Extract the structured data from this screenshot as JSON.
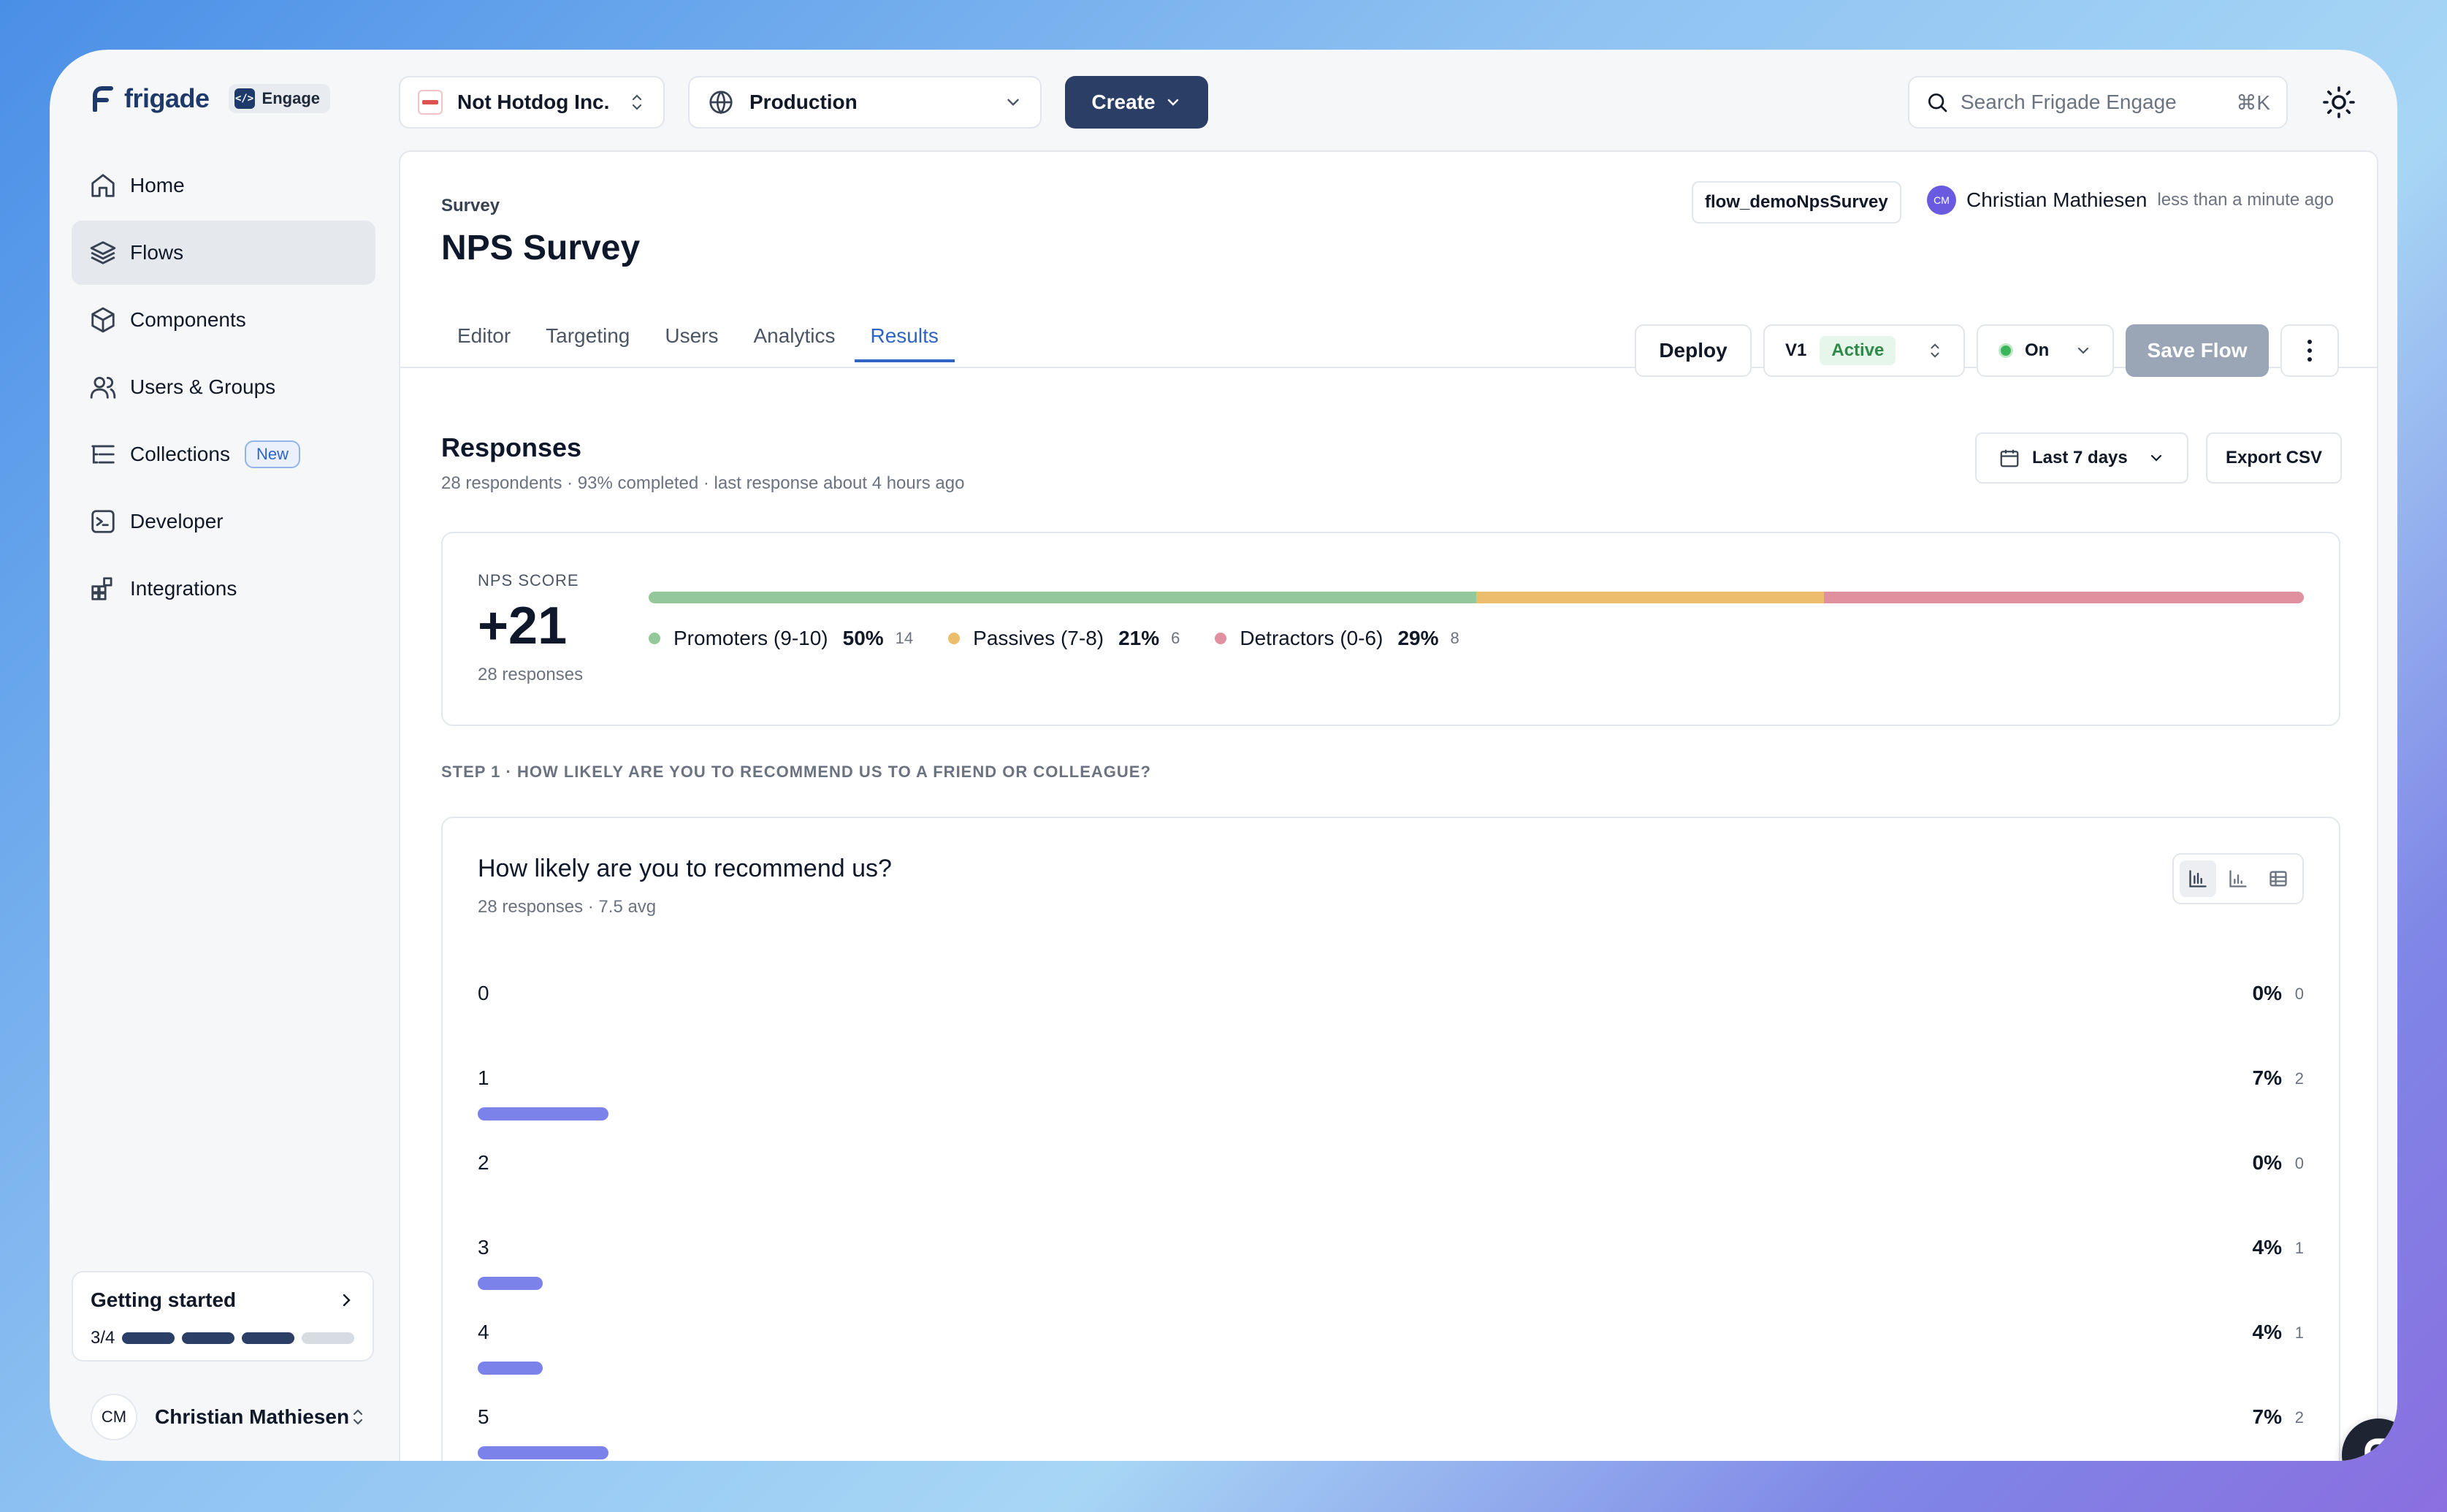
{
  "app": {
    "logo_text": "frigade",
    "product_badge": "Engage"
  },
  "sidebar": {
    "items": [
      {
        "label": "Home",
        "icon": "home-icon"
      },
      {
        "label": "Flows",
        "icon": "layers-icon",
        "active": true
      },
      {
        "label": "Components",
        "icon": "box-icon"
      },
      {
        "label": "Users & Groups",
        "icon": "users-icon"
      },
      {
        "label": "Collections",
        "icon": "list-tree-icon",
        "badge": "New"
      },
      {
        "label": "Developer",
        "icon": "terminal-icon"
      },
      {
        "label": "Integrations",
        "icon": "blocks-icon"
      }
    ],
    "getting_started": {
      "title": "Getting started",
      "progress_label": "3/4",
      "completed": 3,
      "total": 4
    },
    "user": {
      "initials": "CM",
      "name": "Christian Mathiesen"
    }
  },
  "topbar": {
    "org": "Not Hotdog Inc.",
    "environment": "Production",
    "create_label": "Create",
    "search_placeholder": "Search Frigade Engage",
    "search_shortcut": "⌘K"
  },
  "flow": {
    "type_label": "Survey",
    "title": "NPS Survey",
    "id": "flow_demoNpsSurvey",
    "author_initials": "CM",
    "author": "Christian Mathiesen",
    "updated": "less than a minute ago",
    "tabs": [
      "Editor",
      "Targeting",
      "Users",
      "Analytics",
      "Results"
    ],
    "active_tab": "Results",
    "deploy_label": "Deploy",
    "version": "V1",
    "version_status": "Active",
    "toggle_label": "On",
    "save_label": "Save Flow"
  },
  "responses": {
    "title": "Responses",
    "summary": "28 respondents · 93% completed · last response about 4 hours ago",
    "date_range": "Last 7 days",
    "export_label": "Export CSV"
  },
  "nps": {
    "label": "NPS SCORE",
    "score": "+21",
    "responses": "28 responses",
    "segments": [
      {
        "name": "Promoters (9-10)",
        "pct_label": "50%",
        "count": "14",
        "fraction": 0.5,
        "color": "#93c99a"
      },
      {
        "name": "Passives (7-8)",
        "pct_label": "21%",
        "count": "6",
        "fraction": 0.21,
        "color": "#ebbd6c"
      },
      {
        "name": "Detractors (0-6)",
        "pct_label": "29%",
        "count": "8",
        "fraction": 0.29,
        "color": "#e0909e"
      }
    ]
  },
  "step": {
    "label": "STEP 1 · HOW LIKELY ARE YOU TO RECOMMEND US TO A FRIEND OR COLLEAGUE?",
    "question": "How likely are you to recommend us?",
    "summary": "28 responses · 7.5 avg"
  },
  "chart_data": {
    "type": "bar",
    "categories": [
      "0",
      "1",
      "2",
      "3",
      "4",
      "5"
    ],
    "values": [
      0,
      2,
      0,
      1,
      1,
      2
    ],
    "percent_labels": [
      "0%",
      "7%",
      "0%",
      "4%",
      "4%",
      "7%"
    ],
    "bar_color": "#7b83ea",
    "max_count": 28
  }
}
